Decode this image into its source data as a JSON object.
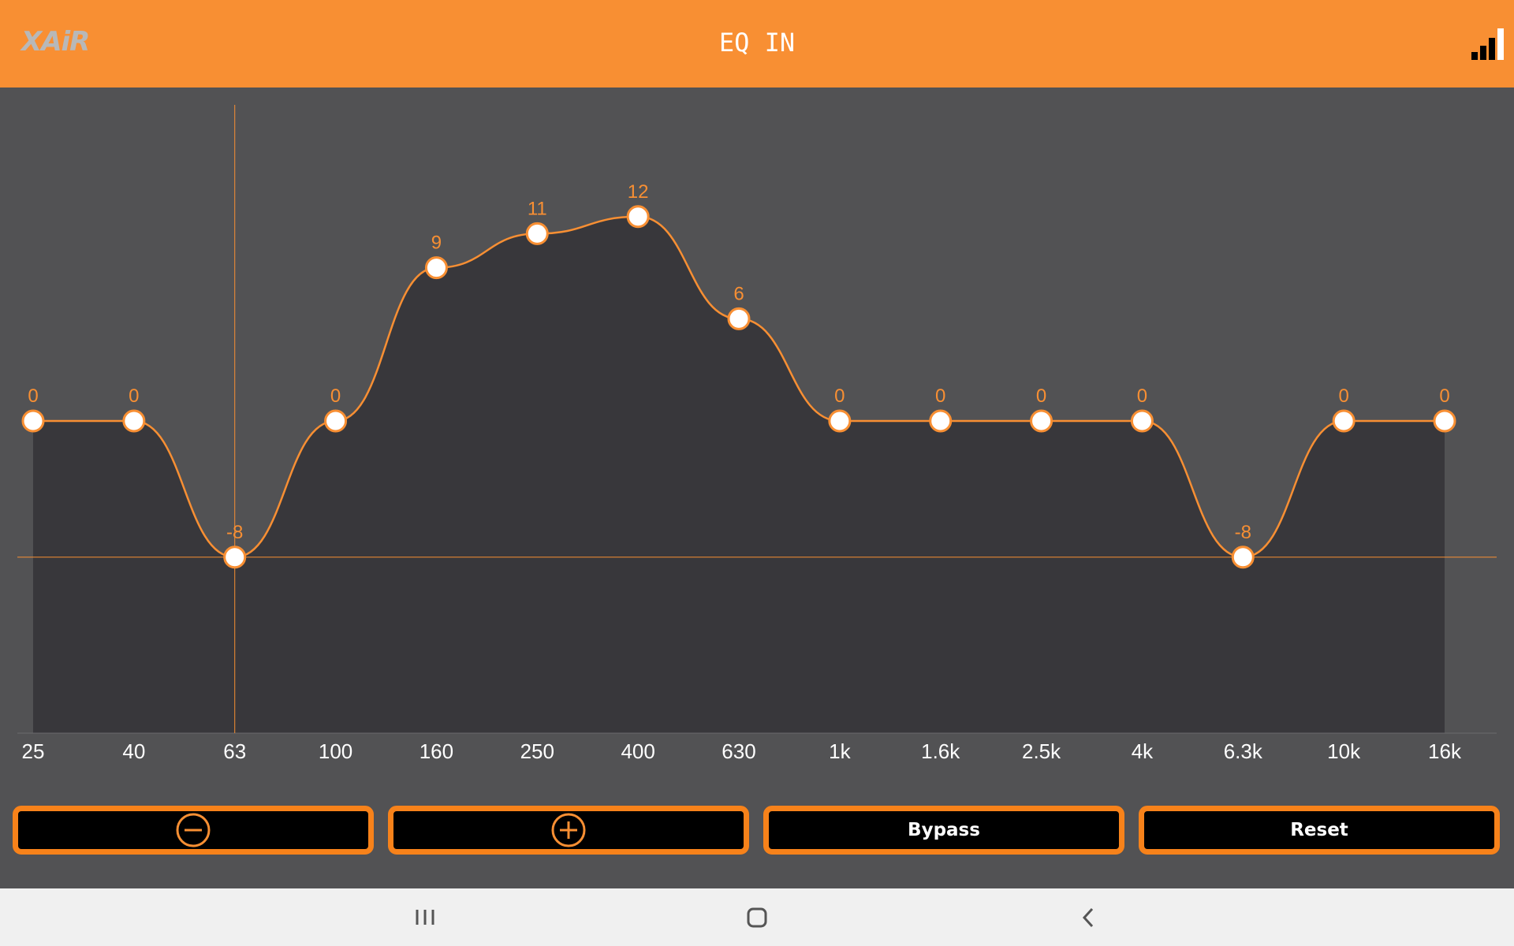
{
  "header": {
    "logo_text": "XAiR",
    "title": "EQ IN",
    "signal_icon": "signal-strength-icon"
  },
  "colors": {
    "accent": "#f88f33",
    "button_border": "#f7821a",
    "background": "#525254",
    "plot_fill": "#38373b",
    "knob": "#ffffff"
  },
  "chart_data": {
    "type": "line",
    "categories": [
      "25",
      "40",
      "63",
      "100",
      "160",
      "250",
      "400",
      "630",
      "1k",
      "1.6k",
      "2.5k",
      "4k",
      "6.3k",
      "10k",
      "16k"
    ],
    "values": [
      0,
      0,
      -8,
      0,
      9,
      11,
      12,
      6,
      0,
      0,
      0,
      0,
      -8,
      0,
      0
    ],
    "value_labels": [
      "0",
      "0",
      "-8",
      "0",
      "9",
      "11",
      "12",
      "6",
      "0",
      "0",
      "0",
      "0",
      "-8",
      "0",
      "0"
    ],
    "selected_band": "63",
    "ylim": [
      -18,
      18
    ],
    "grid": false
  },
  "buttons": {
    "minus_icon": "minus-circle-icon",
    "plus_icon": "plus-circle-icon",
    "bypass_label": "Bypass",
    "reset_label": "Reset"
  },
  "navbar": {
    "recents_icon": "recents-icon",
    "home_icon": "home-icon",
    "back_icon": "back-icon"
  }
}
